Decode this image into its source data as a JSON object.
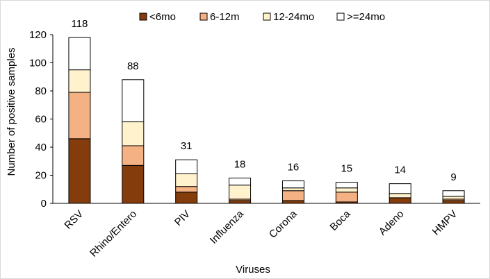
{
  "chart_data": {
    "type": "bar",
    "stacked": true,
    "xlabel": "Viruses",
    "ylabel": "Number of positive samples",
    "ylim": [
      0,
      120
    ],
    "yticks": [
      0,
      20,
      40,
      60,
      80,
      100,
      120
    ],
    "grid": false,
    "legend_position": "top",
    "categories": [
      "RSV",
      "Rhino/Entero",
      "PIV",
      "Influenza",
      "Corona",
      "Boca",
      "Adeno",
      "HMPV"
    ],
    "totals": [
      118,
      88,
      31,
      18,
      16,
      15,
      14,
      9
    ],
    "series": [
      {
        "name": "<6mo",
        "color": "#843c0c",
        "values": [
          46,
          27,
          8,
          2,
          2,
          1,
          4,
          2
        ]
      },
      {
        "name": "6-12m",
        "color": "#f4b183",
        "values": [
          33,
          14,
          4,
          1,
          7,
          7,
          0,
          1
        ]
      },
      {
        "name": "12-24mo",
        "color": "#fff2cc",
        "values": [
          16,
          17,
          9,
          10,
          2,
          3,
          3,
          2
        ]
      },
      {
        "name": ">=24mo",
        "color": "#ffffff",
        "values": [
          23,
          30,
          10,
          5,
          5,
          4,
          7,
          4
        ]
      }
    ]
  }
}
